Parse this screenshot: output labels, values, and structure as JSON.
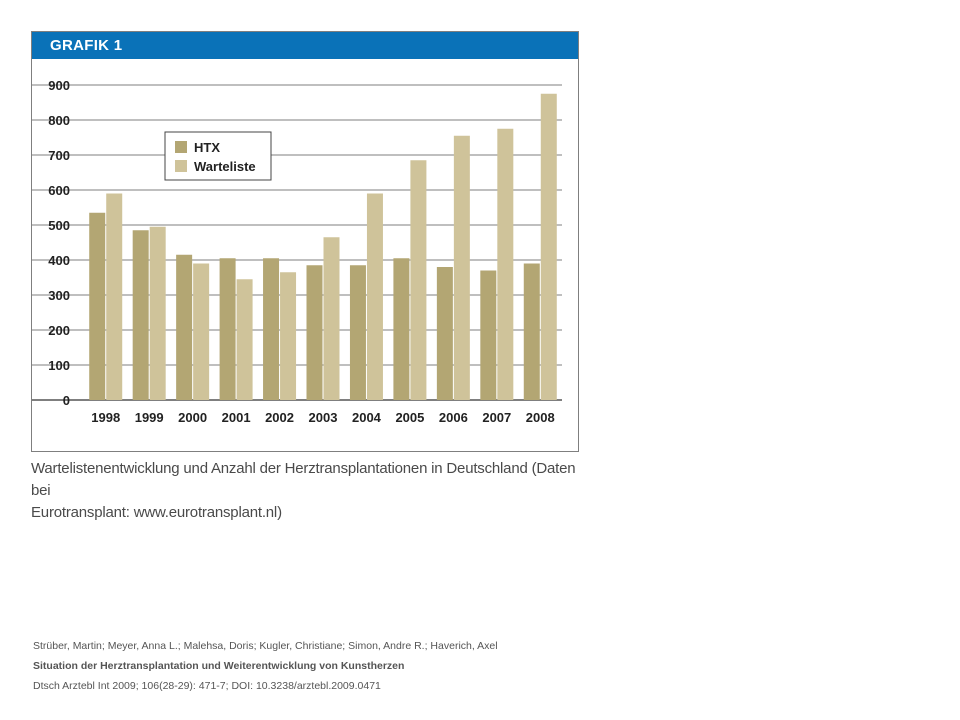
{
  "figure": {
    "header_label": "GRAFIK 1",
    "caption_line1": "Wartelistenentwicklung und Anzahl der Herztransplantationen in Deutschland (Daten bei",
    "caption_line2": "Eurotransplant: www.eurotransplant.nl)"
  },
  "citation": {
    "authors": "Strüber, Martin; Meyer, Anna L.; Malehsa, Doris; Kugler, Christiane; Simon, Andre R.; Haverich, Axel",
    "title": "Situation der Herztransplantation und Weiterentwicklung von Kunstherzen",
    "source": "Dtsch Arztebl Int 2009; 106(28-29): 471-7; DOI: 10.3238/arztebl.2009.0471"
  },
  "chart_data": {
    "type": "bar",
    "title": "",
    "xlabel": "",
    "ylabel": "",
    "categories": [
      "1998",
      "1999",
      "2000",
      "2001",
      "2002",
      "2003",
      "2004",
      "2005",
      "2006",
      "2007",
      "2008"
    ],
    "series": [
      {
        "name": "HTX",
        "color": "#b3a673",
        "values": [
          535,
          485,
          415,
          405,
          405,
          385,
          385,
          405,
          380,
          370,
          390
        ]
      },
      {
        "name": "Warteliste",
        "color": "#cfc39a",
        "values": [
          590,
          495,
          390,
          345,
          365,
          465,
          590,
          685,
          755,
          775,
          875
        ]
      }
    ],
    "ylim": [
      0,
      900
    ],
    "yticks": [
      0,
      100,
      200,
      300,
      400,
      500,
      600,
      700,
      800,
      900
    ],
    "grid": true,
    "legend": "top-left"
  }
}
